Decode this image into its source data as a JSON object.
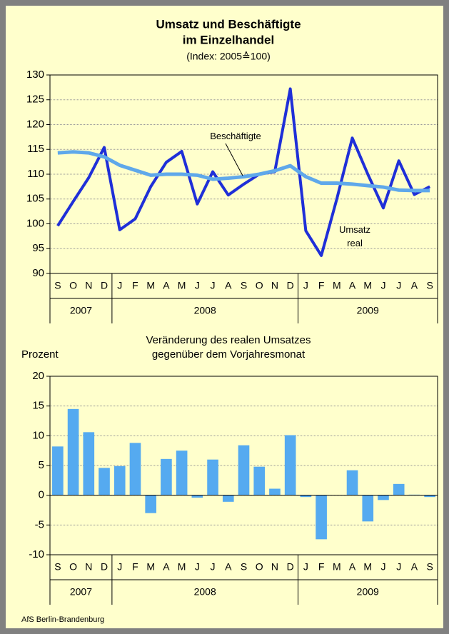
{
  "chart_data": [
    {
      "type": "line",
      "title": [
        "Umsatz und Beschäftigte",
        "im Einzelhandel"
      ],
      "subtitle": "(Index: 2005≙100)",
      "category_groups": [
        {
          "label": "2007",
          "categories": [
            "S",
            "O",
            "N",
            "D"
          ]
        },
        {
          "label": "2008",
          "categories": [
            "J",
            "F",
            "M",
            "A",
            "M",
            "J",
            "J",
            "A",
            "S",
            "O",
            "N",
            "D"
          ]
        },
        {
          "label": "2009",
          "categories": [
            "J",
            "F",
            "M",
            "A",
            "M",
            "J",
            "J",
            "A",
            "S"
          ]
        }
      ],
      "series": [
        {
          "name": "Umsatz real",
          "color": "#1f2fd8",
          "values": [
            99.6,
            104.5,
            109.3,
            115.4,
            98.8,
            101,
            107.5,
            112.4,
            114.6,
            104,
            110.5,
            105.8,
            108,
            110,
            110.5,
            127.2,
            98.6,
            93.6,
            105,
            117.3,
            110,
            103.2,
            112.7,
            105.9,
            107.5
          ]
        },
        {
          "name": "Beschäftigte",
          "color": "#5fa8ea",
          "values": [
            114.3,
            114.5,
            114.3,
            113.5,
            111.8,
            110.8,
            109.8,
            110,
            110,
            109.8,
            109,
            109.2,
            109.5,
            110,
            110.7,
            111.7,
            109.5,
            108.2,
            108.2,
            108,
            107.7,
            107.4,
            106.8,
            106.7,
            106.7
          ]
        }
      ],
      "ylim": [
        90,
        130
      ],
      "yticks": [
        90,
        95,
        100,
        105,
        110,
        115,
        120,
        125,
        130
      ],
      "grid": true
    },
    {
      "type": "bar",
      "title": [
        "Veränderung des realen Umsatzes",
        "gegenüber dem Vorjahresmonat"
      ],
      "y_label": "Prozent",
      "category_groups": [
        {
          "label": "2007",
          "categories": [
            "S",
            "O",
            "N",
            "D"
          ]
        },
        {
          "label": "2008",
          "categories": [
            "J",
            "F",
            "M",
            "A",
            "M",
            "J",
            "J",
            "A",
            "S",
            "O",
            "N",
            "D"
          ]
        },
        {
          "label": "2009",
          "categories": [
            "J",
            "F",
            "M",
            "A",
            "M",
            "J",
            "J",
            "A",
            "S"
          ]
        }
      ],
      "color": "#55aaf0",
      "values": [
        8.2,
        14.5,
        10.6,
        4.6,
        4.9,
        8.8,
        -3,
        6.1,
        7.5,
        -0.4,
        6,
        -1.1,
        8.4,
        4.8,
        1.1,
        10.1,
        -0.3,
        -7.4,
        0,
        4.2,
        -4.4,
        -0.8,
        1.9,
        0.1,
        -0.3
      ],
      "ylim": [
        -10,
        20
      ],
      "yticks": [
        -10,
        -5,
        0,
        5,
        10,
        15,
        20
      ],
      "grid": true
    }
  ],
  "source": "AfS Berlin-Brandenburg"
}
